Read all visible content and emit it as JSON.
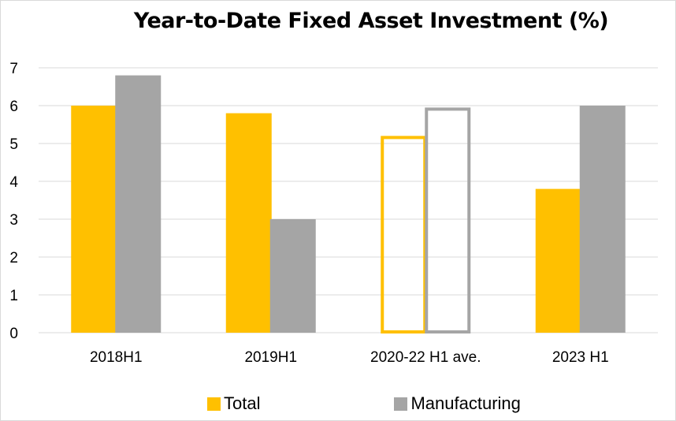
{
  "chart_data": {
    "type": "bar",
    "title": "Year-to-Date Fixed Asset Investment (%)",
    "xlabel": "",
    "ylabel": "",
    "categories": [
      "2018H1",
      "2019H1",
      "2020-22 H1 ave.",
      "2023 H1"
    ],
    "series": [
      {
        "name": "Total",
        "color": "#FFC000",
        "values": [
          6.0,
          5.8,
          5.2,
          3.8
        ]
      },
      {
        "name": "Manufacturing",
        "color": "#A5A5A5",
        "values": [
          6.8,
          3.0,
          5.95,
          6.0
        ]
      }
    ],
    "hollow_categories": [
      2
    ],
    "ylim": [
      0,
      7
    ],
    "yticks": [
      0,
      1,
      2,
      3,
      4,
      5,
      6,
      7
    ],
    "grid": true,
    "legend_position": "bottom"
  }
}
